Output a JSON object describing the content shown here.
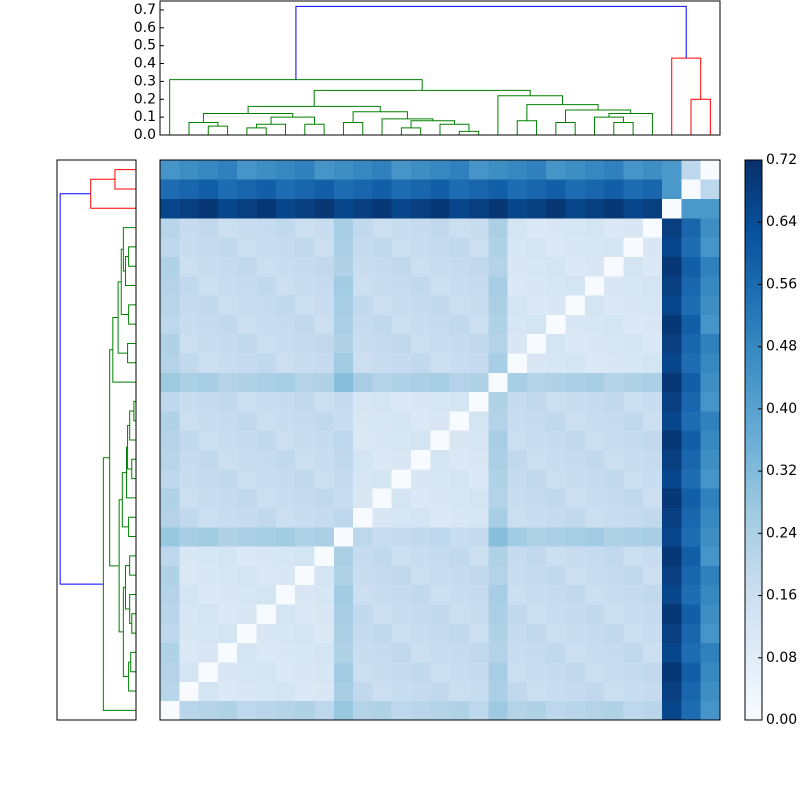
{
  "chart_data": {
    "type": "clustered-heatmap",
    "matrix": [
      [
        0,
        0.21,
        0.22,
        0.23,
        0.2,
        0.21,
        0.22,
        0.23,
        0.2,
        0.28,
        0.22,
        0.23,
        0.2,
        0.21,
        0.22,
        0.23,
        0.2,
        0.27,
        0.22,
        0.23,
        0.2,
        0.21,
        0.22,
        0.23,
        0.2,
        0.21,
        0.66,
        0.55,
        0.44
      ],
      [
        0.21,
        0,
        0.13,
        0.1,
        0.11,
        0.12,
        0.13,
        0.1,
        0.11,
        0.25,
        0.19,
        0.16,
        0.17,
        0.18,
        0.19,
        0.16,
        0.17,
        0.24,
        0.19,
        0.16,
        0.17,
        0.18,
        0.19,
        0.16,
        0.17,
        0.18,
        0.68,
        0.57,
        0.46
      ],
      [
        0.22,
        0.13,
        0,
        0.11,
        0.12,
        0.13,
        0.1,
        0.11,
        0.12,
        0.26,
        0.16,
        0.17,
        0.18,
        0.19,
        0.16,
        0.17,
        0.18,
        0.25,
        0.16,
        0.17,
        0.18,
        0.19,
        0.16,
        0.17,
        0.18,
        0.19,
        0.7,
        0.59,
        0.48
      ],
      [
        0.23,
        0.1,
        0.11,
        0,
        0.13,
        0.1,
        0.11,
        0.12,
        0.13,
        0.23,
        0.17,
        0.18,
        0.19,
        0.16,
        0.17,
        0.18,
        0.19,
        0.22,
        0.17,
        0.18,
        0.19,
        0.16,
        0.17,
        0.18,
        0.19,
        0.16,
        0.66,
        0.55,
        0.5
      ],
      [
        0.2,
        0.11,
        0.12,
        0.13,
        0,
        0.11,
        0.12,
        0.13,
        0.1,
        0.24,
        0.18,
        0.19,
        0.16,
        0.17,
        0.18,
        0.19,
        0.16,
        0.23,
        0.18,
        0.19,
        0.16,
        0.17,
        0.18,
        0.19,
        0.16,
        0.17,
        0.68,
        0.57,
        0.44
      ],
      [
        0.21,
        0.12,
        0.13,
        0.1,
        0.11,
        0,
        0.13,
        0.1,
        0.11,
        0.25,
        0.19,
        0.16,
        0.17,
        0.18,
        0.19,
        0.16,
        0.17,
        0.24,
        0.19,
        0.16,
        0.17,
        0.18,
        0.19,
        0.16,
        0.17,
        0.18,
        0.7,
        0.59,
        0.46
      ],
      [
        0.22,
        0.13,
        0.1,
        0.11,
        0.12,
        0.13,
        0,
        0.11,
        0.12,
        0.26,
        0.16,
        0.17,
        0.18,
        0.19,
        0.16,
        0.17,
        0.18,
        0.25,
        0.16,
        0.17,
        0.18,
        0.19,
        0.16,
        0.17,
        0.18,
        0.19,
        0.66,
        0.55,
        0.48
      ],
      [
        0.23,
        0.1,
        0.11,
        0.12,
        0.13,
        0.1,
        0.11,
        0,
        0.13,
        0.23,
        0.17,
        0.18,
        0.19,
        0.16,
        0.17,
        0.18,
        0.19,
        0.22,
        0.17,
        0.18,
        0.19,
        0.16,
        0.17,
        0.18,
        0.19,
        0.16,
        0.68,
        0.57,
        0.5
      ],
      [
        0.2,
        0.11,
        0.12,
        0.13,
        0.1,
        0.11,
        0.12,
        0.13,
        0,
        0.24,
        0.18,
        0.19,
        0.16,
        0.17,
        0.18,
        0.19,
        0.16,
        0.23,
        0.18,
        0.19,
        0.16,
        0.17,
        0.18,
        0.19,
        0.16,
        0.17,
        0.7,
        0.59,
        0.44
      ],
      [
        0.28,
        0.25,
        0.26,
        0.23,
        0.24,
        0.25,
        0.26,
        0.23,
        0.24,
        0,
        0.2,
        0.17,
        0.18,
        0.19,
        0.2,
        0.17,
        0.18,
        0.31,
        0.26,
        0.23,
        0.24,
        0.25,
        0.26,
        0.23,
        0.24,
        0.25,
        0.66,
        0.55,
        0.46
      ],
      [
        0.22,
        0.19,
        0.16,
        0.17,
        0.18,
        0.19,
        0.16,
        0.17,
        0.18,
        0.2,
        0,
        0.11,
        0.12,
        0.13,
        0.1,
        0.11,
        0.12,
        0.25,
        0.16,
        0.17,
        0.18,
        0.19,
        0.16,
        0.17,
        0.18,
        0.19,
        0.68,
        0.57,
        0.48
      ],
      [
        0.23,
        0.16,
        0.17,
        0.18,
        0.19,
        0.16,
        0.17,
        0.18,
        0.19,
        0.17,
        0.11,
        0,
        0.13,
        0.1,
        0.11,
        0.12,
        0.13,
        0.22,
        0.17,
        0.18,
        0.19,
        0.16,
        0.17,
        0.18,
        0.19,
        0.16,
        0.7,
        0.59,
        0.5
      ],
      [
        0.2,
        0.17,
        0.18,
        0.19,
        0.16,
        0.17,
        0.18,
        0.19,
        0.16,
        0.18,
        0.12,
        0.13,
        0,
        0.11,
        0.12,
        0.13,
        0.1,
        0.23,
        0.18,
        0.19,
        0.16,
        0.17,
        0.18,
        0.19,
        0.16,
        0.17,
        0.66,
        0.55,
        0.44
      ],
      [
        0.21,
        0.18,
        0.19,
        0.16,
        0.17,
        0.18,
        0.19,
        0.16,
        0.17,
        0.19,
        0.13,
        0.1,
        0.11,
        0,
        0.13,
        0.1,
        0.11,
        0.24,
        0.19,
        0.16,
        0.17,
        0.18,
        0.19,
        0.16,
        0.17,
        0.18,
        0.68,
        0.57,
        0.46
      ],
      [
        0.22,
        0.19,
        0.16,
        0.17,
        0.18,
        0.19,
        0.16,
        0.17,
        0.18,
        0.2,
        0.1,
        0.11,
        0.12,
        0.13,
        0,
        0.11,
        0.12,
        0.25,
        0.16,
        0.17,
        0.18,
        0.19,
        0.16,
        0.17,
        0.18,
        0.19,
        0.7,
        0.59,
        0.48
      ],
      [
        0.23,
        0.16,
        0.17,
        0.18,
        0.19,
        0.16,
        0.17,
        0.18,
        0.19,
        0.17,
        0.11,
        0.12,
        0.13,
        0.1,
        0.11,
        0,
        0.13,
        0.22,
        0.17,
        0.18,
        0.19,
        0.16,
        0.17,
        0.18,
        0.19,
        0.16,
        0.66,
        0.55,
        0.5
      ],
      [
        0.2,
        0.17,
        0.18,
        0.19,
        0.16,
        0.17,
        0.18,
        0.19,
        0.16,
        0.18,
        0.12,
        0.13,
        0.1,
        0.11,
        0.12,
        0.13,
        0,
        0.23,
        0.18,
        0.19,
        0.16,
        0.17,
        0.18,
        0.19,
        0.16,
        0.17,
        0.68,
        0.57,
        0.44
      ],
      [
        0.27,
        0.24,
        0.25,
        0.22,
        0.23,
        0.24,
        0.25,
        0.22,
        0.23,
        0.31,
        0.25,
        0.22,
        0.23,
        0.24,
        0.25,
        0.22,
        0.23,
        0,
        0.25,
        0.22,
        0.23,
        0.24,
        0.25,
        0.22,
        0.23,
        0.24,
        0.7,
        0.59,
        0.46
      ],
      [
        0.22,
        0.19,
        0.16,
        0.17,
        0.18,
        0.19,
        0.16,
        0.17,
        0.18,
        0.26,
        0.16,
        0.17,
        0.18,
        0.19,
        0.16,
        0.17,
        0.18,
        0.25,
        0,
        0.11,
        0.12,
        0.13,
        0.1,
        0.11,
        0.12,
        0.13,
        0.66,
        0.55,
        0.48
      ],
      [
        0.23,
        0.16,
        0.17,
        0.18,
        0.19,
        0.16,
        0.17,
        0.18,
        0.19,
        0.23,
        0.17,
        0.18,
        0.19,
        0.16,
        0.17,
        0.18,
        0.19,
        0.22,
        0.11,
        0,
        0.13,
        0.1,
        0.11,
        0.12,
        0.13,
        0.1,
        0.68,
        0.57,
        0.5
      ],
      [
        0.2,
        0.17,
        0.18,
        0.19,
        0.16,
        0.17,
        0.18,
        0.19,
        0.16,
        0.24,
        0.18,
        0.19,
        0.16,
        0.17,
        0.18,
        0.19,
        0.16,
        0.23,
        0.12,
        0.13,
        0,
        0.11,
        0.12,
        0.13,
        0.1,
        0.11,
        0.7,
        0.59,
        0.44
      ],
      [
        0.21,
        0.18,
        0.19,
        0.16,
        0.17,
        0.18,
        0.19,
        0.16,
        0.17,
        0.25,
        0.19,
        0.16,
        0.17,
        0.18,
        0.19,
        0.16,
        0.17,
        0.24,
        0.13,
        0.1,
        0.11,
        0,
        0.13,
        0.1,
        0.11,
        0.12,
        0.66,
        0.55,
        0.46
      ],
      [
        0.22,
        0.19,
        0.16,
        0.17,
        0.18,
        0.19,
        0.16,
        0.17,
        0.18,
        0.26,
        0.16,
        0.17,
        0.18,
        0.19,
        0.16,
        0.17,
        0.18,
        0.25,
        0.1,
        0.11,
        0.12,
        0.13,
        0,
        0.11,
        0.12,
        0.13,
        0.68,
        0.57,
        0.48
      ],
      [
        0.23,
        0.16,
        0.17,
        0.18,
        0.19,
        0.16,
        0.17,
        0.18,
        0.19,
        0.23,
        0.17,
        0.18,
        0.19,
        0.16,
        0.17,
        0.18,
        0.19,
        0.22,
        0.11,
        0.12,
        0.13,
        0.1,
        0.11,
        0,
        0.13,
        0.1,
        0.7,
        0.59,
        0.5
      ],
      [
        0.2,
        0.17,
        0.18,
        0.19,
        0.16,
        0.17,
        0.18,
        0.19,
        0.16,
        0.24,
        0.18,
        0.19,
        0.16,
        0.17,
        0.18,
        0.19,
        0.16,
        0.23,
        0.12,
        0.13,
        0.1,
        0.11,
        0.12,
        0.13,
        0,
        0.11,
        0.66,
        0.55,
        0.44
      ],
      [
        0.21,
        0.18,
        0.19,
        0.16,
        0.17,
        0.18,
        0.19,
        0.16,
        0.17,
        0.25,
        0.19,
        0.16,
        0.17,
        0.18,
        0.19,
        0.16,
        0.17,
        0.24,
        0.13,
        0.1,
        0.11,
        0.12,
        0.13,
        0.1,
        0.11,
        0,
        0.68,
        0.57,
        0.46
      ],
      [
        0.66,
        0.68,
        0.7,
        0.66,
        0.68,
        0.7,
        0.66,
        0.68,
        0.7,
        0.66,
        0.68,
        0.7,
        0.66,
        0.68,
        0.7,
        0.66,
        0.68,
        0.7,
        0.66,
        0.68,
        0.7,
        0.66,
        0.68,
        0.7,
        0.66,
        0.68,
        0,
        0.43,
        0.43
      ],
      [
        0.55,
        0.57,
        0.59,
        0.55,
        0.57,
        0.59,
        0.55,
        0.57,
        0.59,
        0.55,
        0.57,
        0.59,
        0.55,
        0.57,
        0.59,
        0.55,
        0.57,
        0.59,
        0.55,
        0.57,
        0.59,
        0.55,
        0.57,
        0.59,
        0.55,
        0.57,
        0.43,
        0,
        0.2
      ],
      [
        0.44,
        0.46,
        0.48,
        0.5,
        0.44,
        0.46,
        0.48,
        0.5,
        0.44,
        0.46,
        0.48,
        0.5,
        0.44,
        0.46,
        0.48,
        0.5,
        0.44,
        0.46,
        0.48,
        0.5,
        0.44,
        0.46,
        0.48,
        0.5,
        0.44,
        0.46,
        0.43,
        0.2,
        0
      ]
    ],
    "linkage": [
      {
        "left": 2,
        "right": 3,
        "height": 0.05,
        "color": "#008000"
      },
      {
        "left": 1,
        "right": 29,
        "height": 0.07,
        "color": "#008000"
      },
      {
        "left": 4,
        "right": 5,
        "height": 0.04,
        "color": "#008000"
      },
      {
        "left": 31,
        "right": 6,
        "height": 0.06,
        "color": "#008000"
      },
      {
        "left": 7,
        "right": 8,
        "height": 0.06,
        "color": "#008000"
      },
      {
        "left": 32,
        "right": 33,
        "height": 0.1,
        "color": "#008000"
      },
      {
        "left": 30,
        "right": 34,
        "height": 0.12,
        "color": "#008000"
      },
      {
        "left": 9,
        "right": 10,
        "height": 0.07,
        "color": "#008000"
      },
      {
        "left": 12,
        "right": 13,
        "height": 0.04,
        "color": "#008000"
      },
      {
        "left": 15,
        "right": 16,
        "height": 0.02,
        "color": "#008000"
      },
      {
        "left": 14,
        "right": 38,
        "height": 0.06,
        "color": "#008000"
      },
      {
        "left": 37,
        "right": 39,
        "height": 0.08,
        "color": "#008000"
      },
      {
        "left": 11,
        "right": 40,
        "height": 0.09,
        "color": "#008000"
      },
      {
        "left": 36,
        "right": 41,
        "height": 0.13,
        "color": "#008000"
      },
      {
        "left": 35,
        "right": 42,
        "height": 0.16,
        "color": "#008000"
      },
      {
        "left": 18,
        "right": 19,
        "height": 0.08,
        "color": "#008000"
      },
      {
        "left": 20,
        "right": 21,
        "height": 0.07,
        "color": "#008000"
      },
      {
        "left": 23,
        "right": 24,
        "height": 0.07,
        "color": "#008000"
      },
      {
        "left": 22,
        "right": 46,
        "height": 0.1,
        "color": "#008000"
      },
      {
        "left": 47,
        "right": 25,
        "height": 0.12,
        "color": "#008000"
      },
      {
        "left": 45,
        "right": 48,
        "height": 0.14,
        "color": "#008000"
      },
      {
        "left": 44,
        "right": 49,
        "height": 0.17,
        "color": "#008000"
      },
      {
        "left": 17,
        "right": 50,
        "height": 0.22,
        "color": "#008000"
      },
      {
        "left": 43,
        "right": 51,
        "height": 0.25,
        "color": "#008000"
      },
      {
        "left": 0,
        "right": 52,
        "height": 0.31,
        "color": "#008000"
      },
      {
        "left": 27,
        "right": 28,
        "height": 0.2,
        "color": "#ff0000"
      },
      {
        "left": 26,
        "right": 54,
        "height": 0.43,
        "color": "#ff0000"
      },
      {
        "left": 53,
        "right": 55,
        "height": 0.72,
        "color": "#0000ff"
      }
    ],
    "ylim": [
      0,
      0.75
    ],
    "yticks": [
      {
        "value": 0,
        "label": "0.0"
      },
      0.1,
      0.2,
      0.3,
      0.4,
      0.5,
      0.6,
      0.7
    ],
    "clim": [
      0,
      0.72
    ],
    "cticks": [
      {
        "value": 0,
        "label": "0.00"
      },
      0.08,
      0.16,
      0.24,
      {
        "value": 0.32,
        "label": "0.32"
      },
      {
        "value": 0.4,
        "label": "0.40"
      },
      0.48,
      0.56,
      0.64,
      0.72
    ],
    "colormap": [
      "#f7fbff",
      "#deebf7",
      "#c6dbef",
      "#9ecae1",
      "#6baed6",
      "#4292c6",
      "#2171b5",
      "#08519c",
      "#08306b"
    ]
  }
}
